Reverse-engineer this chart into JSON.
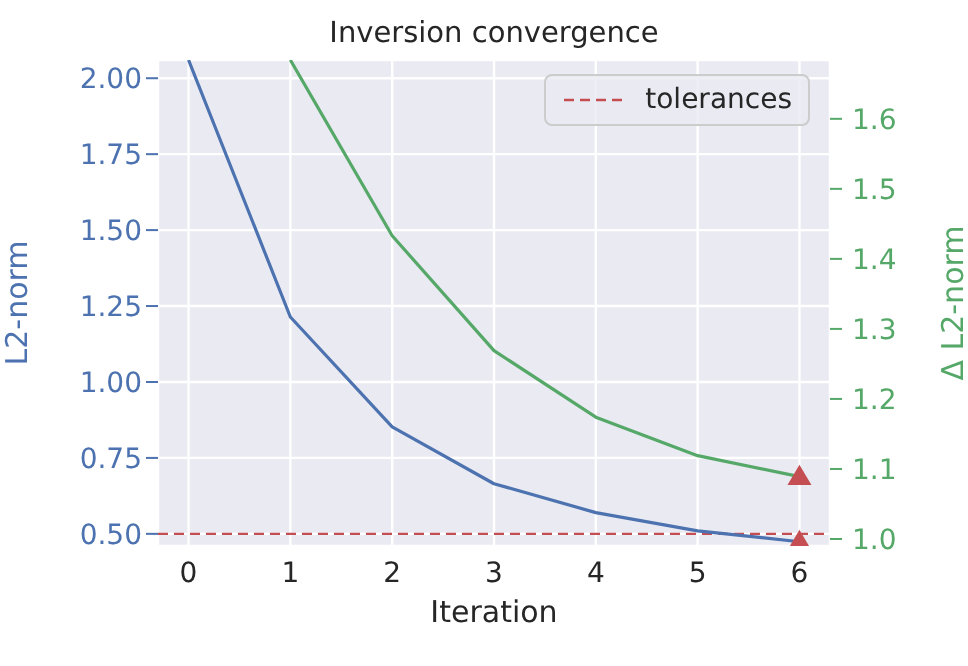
{
  "chart_data": {
    "type": "line",
    "title": "Inversion convergence",
    "xlabel": "Iteration",
    "ylabel": "L2-norm",
    "y2label": "Δ L2-norm",
    "xlim": [
      -0.3,
      6.3
    ],
    "xticks": [
      0,
      1,
      2,
      3,
      4,
      5,
      6
    ],
    "ylim": [
      0.46,
      2.06
    ],
    "yticks": [
      {
        "value": 0.5,
        "label": "0.50"
      },
      {
        "value": 0.75,
        "label": "0.75"
      },
      {
        "value": 1,
        "label": "1.00"
      },
      {
        "value": 1.25,
        "label": "1.25"
      },
      {
        "value": 1.5,
        "label": "1.50"
      },
      {
        "value": 1.75,
        "label": "1.75"
      },
      {
        "value": 2,
        "label": "2.00"
      }
    ],
    "y2lim": [
      0.99,
      1.684
    ],
    "y2ticks": [
      {
        "value": 1,
        "label": "1.0"
      },
      1.1,
      1.2,
      1.3,
      1.4,
      1.5,
      1.6
    ],
    "grid": true,
    "legend": "top right",
    "marker": "none",
    "line_style": "solid",
    "ref_lines": [
      {
        "axis": "y",
        "value": 0.5,
        "label": "tolerances",
        "color": "#c44e52",
        "line_style": "dashed"
      }
    ],
    "series": [
      {
        "color": "#4c72b0",
        "x": [
          0,
          1,
          2,
          3,
          4,
          5,
          6
        ],
        "values": [
          2.06,
          1.214,
          0.852,
          0.665,
          0.57,
          0.51,
          0.474
        ]
      },
      {
        "color": "#55a868",
        "axis": "y2",
        "x": [
          1,
          2,
          3,
          4,
          5,
          6
        ],
        "values": [
          1.684,
          1.433,
          1.269,
          1.174,
          1.119,
          1.089
        ]
      },
      {
        "type": "scatter",
        "marker": "triangle",
        "color": "#c44e52",
        "x": [
          6
        ],
        "values": [
          0.474
        ]
      },
      {
        "type": "scatter",
        "marker": "triangle",
        "color": "#c44e52",
        "axis": "y2",
        "x": [
          6
        ],
        "values": [
          1.089
        ]
      }
    ]
  }
}
